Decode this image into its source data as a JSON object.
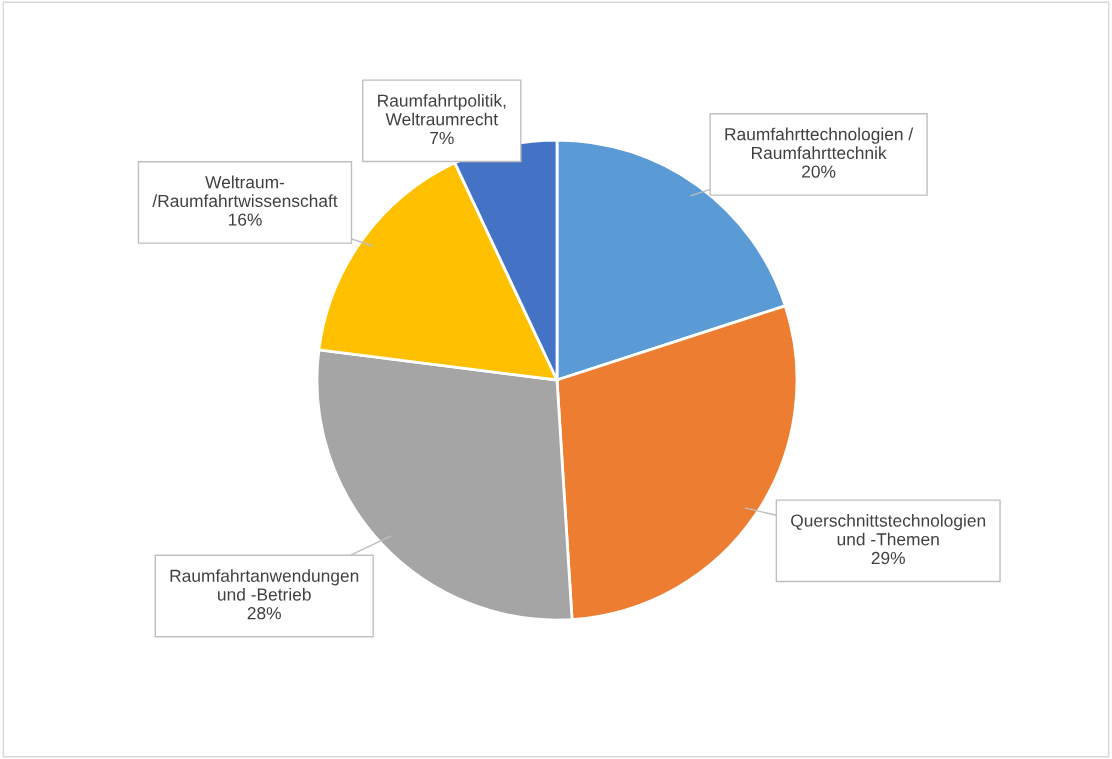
{
  "chart_data": {
    "type": "pie",
    "categories": [
      "Raumfahrttechnologien /\nRaumfahrttechnik",
      "Querschnittstechnologien\nund -Themen",
      "Raumfahrtanwendungen\nund -Betrieb",
      "Weltraum-\n/Raumfahrtwissenschaft",
      "Raumfahrtpolitik,\nWeltraumrecht"
    ],
    "values": [
      20,
      29,
      28,
      16,
      7
    ],
    "colors": [
      "#5b9bd5",
      "#ed7d31",
      "#a5a5a5",
      "#ffc000",
      "#4472c4"
    ],
    "value_labels": [
      "20%",
      "29%",
      "28%",
      "16%",
      "7%"
    ],
    "legend": false
  }
}
